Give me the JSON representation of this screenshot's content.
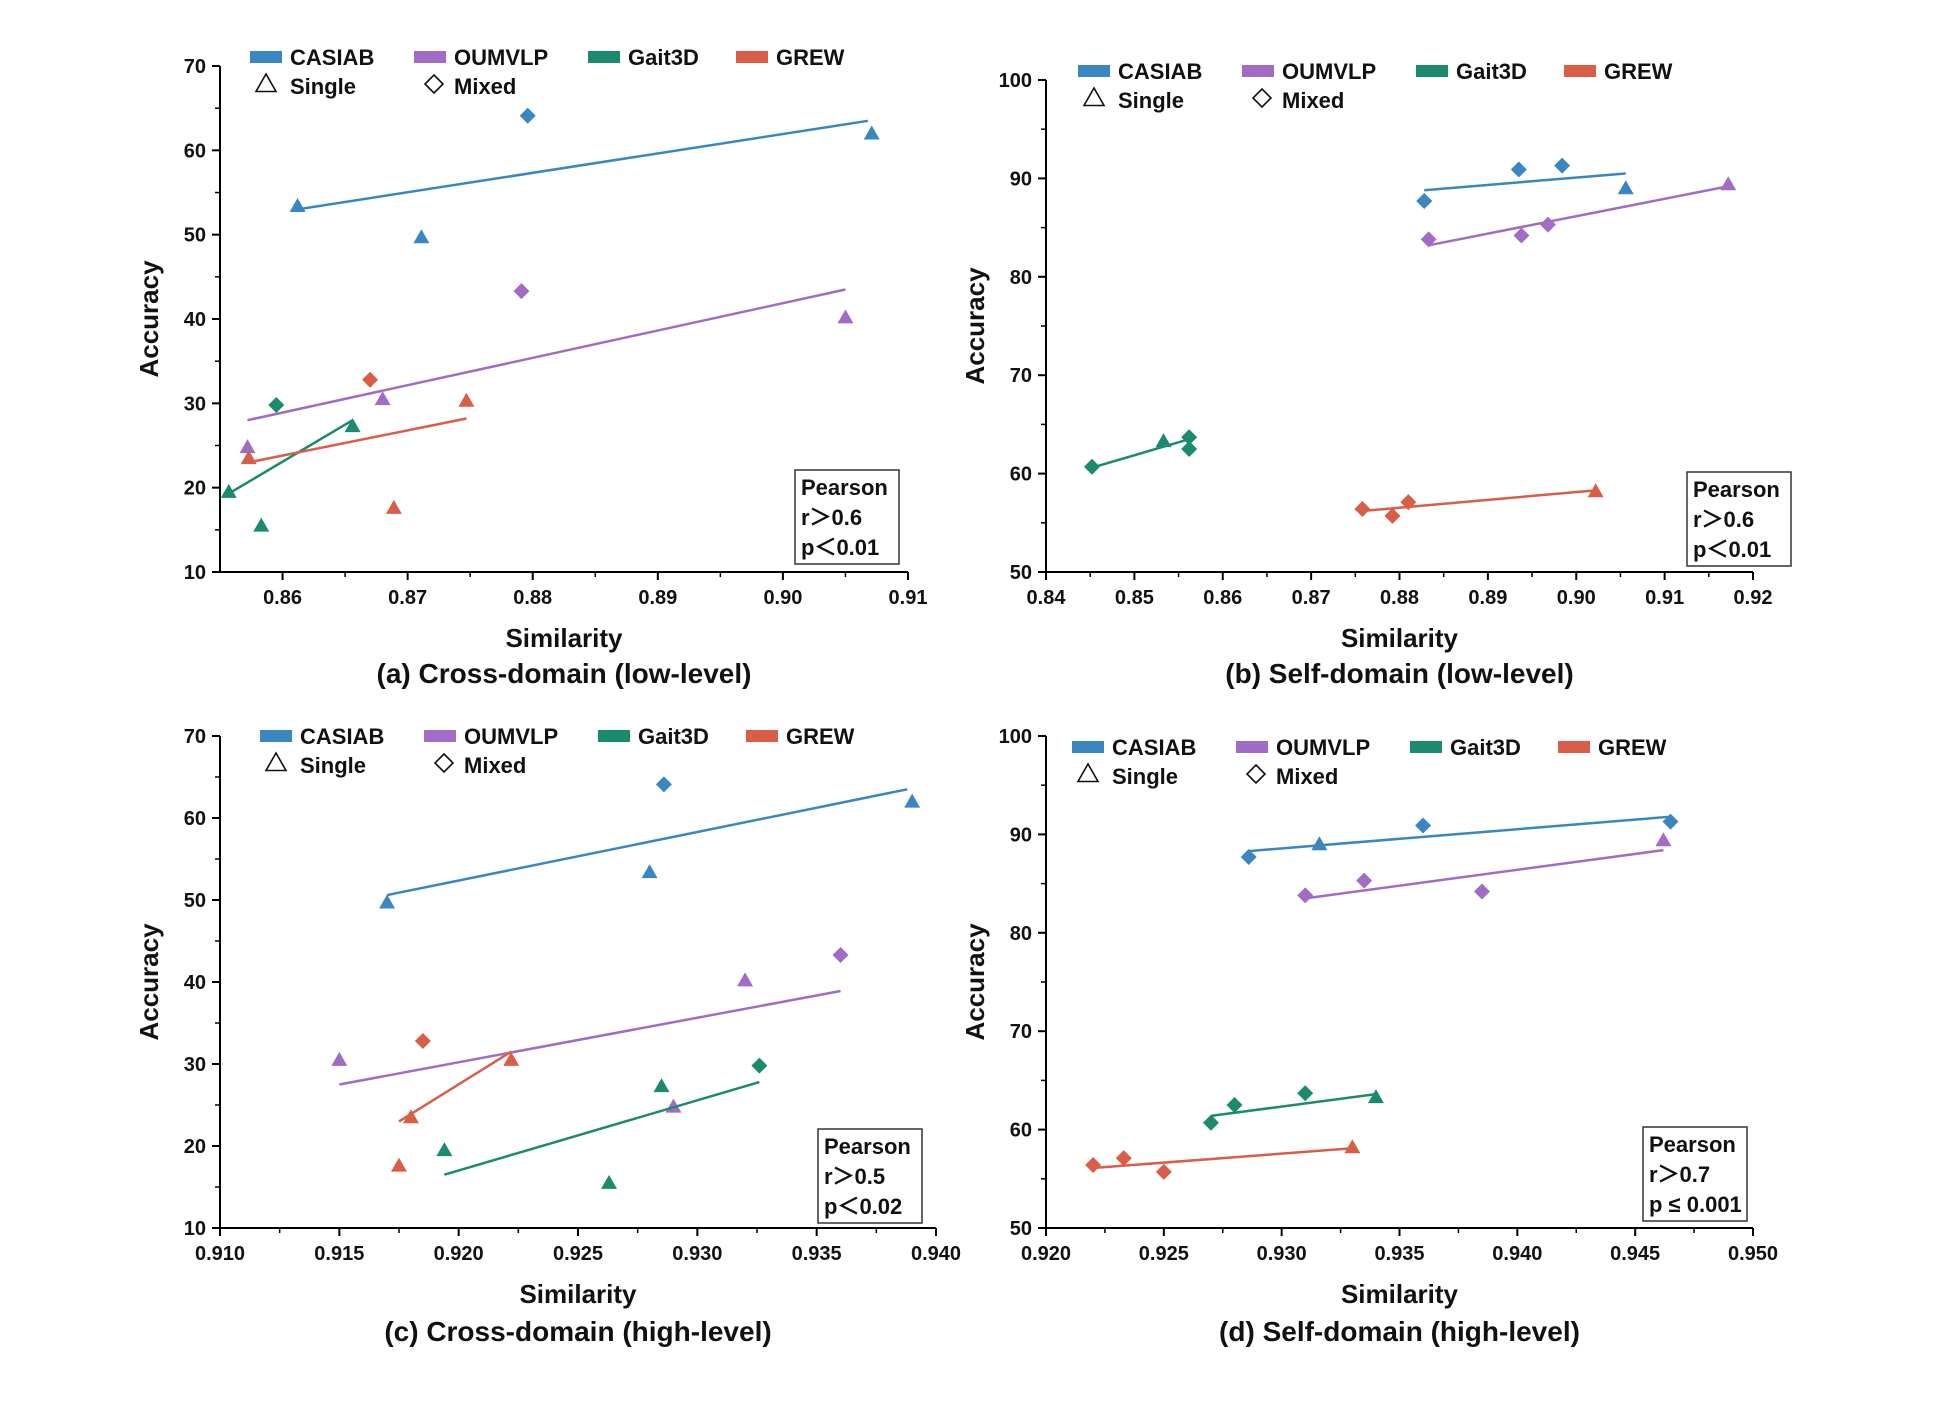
{
  "legend_labels": {
    "casiab": "CASIAB",
    "oumvlp": "OUMVLP",
    "gait3d": "Gait3D",
    "grew": "GREW",
    "single": "Single",
    "mixed": "Mixed"
  },
  "colors": {
    "casiab": "#3a86c0",
    "oumvlp": "#a06cc6",
    "gait3d": "#1b8a6e",
    "grew": "#d95d47"
  },
  "chart_data": [
    {
      "type": "scatter",
      "caption": "(a) Cross-domain (low-level)",
      "xlabel": "Similarity",
      "ylabel": "Accuracy",
      "xlim": [
        0.855,
        0.91
      ],
      "ylim": [
        10,
        70
      ],
      "xticks": [
        "0.86",
        "0.87",
        "0.88",
        "0.89",
        "0.90",
        "0.91"
      ],
      "xtick_values": [
        0.86,
        0.87,
        0.88,
        0.89,
        0.9,
        0.91
      ],
      "yticks": [
        "10",
        "20",
        "30",
        "40",
        "50",
        "60",
        "70"
      ],
      "ytick_values": [
        10,
        20,
        30,
        40,
        50,
        60,
        70
      ],
      "pearson": [
        "Pearson",
        "r＞0.6",
        "p＜0.01"
      ],
      "series": [
        {
          "name": "CASIAB",
          "points": [
            {
              "x": 0.8612,
              "y": 53.4,
              "marker": "single"
            },
            {
              "x": 0.8711,
              "y": 49.7,
              "marker": "single"
            },
            {
              "x": 0.8796,
              "y": 64.1,
              "marker": "mixed"
            },
            {
              "x": 0.9071,
              "y": 62.0,
              "marker": "single"
            }
          ],
          "fit": [
            [
              0.8612,
              53.0
            ],
            [
              0.9068,
              63.5
            ]
          ]
        },
        {
          "name": "OUMVLP",
          "points": [
            {
              "x": 0.8572,
              "y": 24.8,
              "marker": "single"
            },
            {
              "x": 0.868,
              "y": 30.5,
              "marker": "single"
            },
            {
              "x": 0.8791,
              "y": 43.3,
              "marker": "mixed"
            },
            {
              "x": 0.905,
              "y": 40.2,
              "marker": "single"
            }
          ],
          "fit": [
            [
              0.8572,
              28.0
            ],
            [
              0.905,
              43.5
            ]
          ]
        },
        {
          "name": "Gait3D",
          "points": [
            {
              "x": 0.8557,
              "y": 19.5,
              "marker": "single"
            },
            {
              "x": 0.8583,
              "y": 15.5,
              "marker": "single"
            },
            {
              "x": 0.8595,
              "y": 29.8,
              "marker": "mixed"
            },
            {
              "x": 0.8656,
              "y": 27.3,
              "marker": "single"
            }
          ],
          "fit": [
            [
              0.8557,
              19.3
            ],
            [
              0.8656,
              28.0
            ]
          ]
        },
        {
          "name": "GREW",
          "points": [
            {
              "x": 0.8573,
              "y": 23.5,
              "marker": "single"
            },
            {
              "x": 0.867,
              "y": 32.8,
              "marker": "mixed"
            },
            {
              "x": 0.8689,
              "y": 17.6,
              "marker": "single"
            },
            {
              "x": 0.8747,
              "y": 30.3,
              "marker": "single"
            }
          ],
          "fit": [
            [
              0.8573,
              23.0
            ],
            [
              0.8747,
              28.2
            ]
          ]
        }
      ]
    },
    {
      "type": "scatter",
      "caption": "(b) Self-domain (low-level)",
      "xlabel": "Similarity",
      "ylabel": "Accuracy",
      "xlim": [
        0.84,
        0.92
      ],
      "ylim": [
        50,
        100
      ],
      "xticks": [
        "0.84",
        "0.85",
        "0.86",
        "0.87",
        "0.88",
        "0.89",
        "0.90",
        "0.91",
        "0.92"
      ],
      "xtick_values": [
        0.84,
        0.85,
        0.86,
        0.87,
        0.88,
        0.89,
        0.9,
        0.91,
        0.92
      ],
      "yticks": [
        "50",
        "60",
        "70",
        "80",
        "90",
        "100"
      ],
      "ytick_values": [
        50,
        60,
        70,
        80,
        90,
        100
      ],
      "pearson": [
        "Pearson",
        "r＞0.6",
        "p＜0.01"
      ],
      "series": [
        {
          "name": "CASIAB",
          "points": [
            {
              "x": 0.8828,
              "y": 87.7,
              "marker": "mixed"
            },
            {
              "x": 0.8935,
              "y": 90.9,
              "marker": "mixed"
            },
            {
              "x": 0.8984,
              "y": 91.3,
              "marker": "mixed"
            },
            {
              "x": 0.9056,
              "y": 89.0,
              "marker": "single"
            }
          ],
          "fit": [
            [
              0.8828,
              88.8
            ],
            [
              0.9056,
              90.5
            ]
          ]
        },
        {
          "name": "OUMVLP",
          "points": [
            {
              "x": 0.8833,
              "y": 83.8,
              "marker": "mixed"
            },
            {
              "x": 0.8938,
              "y": 84.2,
              "marker": "mixed"
            },
            {
              "x": 0.8968,
              "y": 85.3,
              "marker": "mixed"
            },
            {
              "x": 0.9172,
              "y": 89.4,
              "marker": "single"
            }
          ],
          "fit": [
            [
              0.8833,
              83.2
            ],
            [
              0.9172,
              89.2
            ]
          ]
        },
        {
          "name": "Gait3D",
          "points": [
            {
              "x": 0.8452,
              "y": 60.7,
              "marker": "mixed"
            },
            {
              "x": 0.8533,
              "y": 63.3,
              "marker": "single"
            },
            {
              "x": 0.8562,
              "y": 63.7,
              "marker": "mixed"
            },
            {
              "x": 0.8562,
              "y": 62.5,
              "marker": "mixed"
            }
          ],
          "fit": [
            [
              0.8452,
              60.6
            ],
            [
              0.8562,
              63.5
            ]
          ]
        },
        {
          "name": "GREW",
          "points": [
            {
              "x": 0.8758,
              "y": 56.4,
              "marker": "mixed"
            },
            {
              "x": 0.8792,
              "y": 55.7,
              "marker": "mixed"
            },
            {
              "x": 0.881,
              "y": 57.1,
              "marker": "mixed"
            },
            {
              "x": 0.9022,
              "y": 58.2,
              "marker": "single"
            }
          ],
          "fit": [
            [
              0.8758,
              56.2
            ],
            [
              0.9022,
              58.3
            ]
          ]
        }
      ]
    },
    {
      "type": "scatter",
      "caption": "(c) Cross-domain (high-level)",
      "xlabel": "Similarity",
      "ylabel": "Accuracy",
      "xlim": [
        0.91,
        0.94
      ],
      "ylim": [
        10,
        70
      ],
      "xticks": [
        "0.910",
        "0.915",
        "0.920",
        "0.925",
        "0.930",
        "0.935",
        "0.940"
      ],
      "xtick_values": [
        0.91,
        0.915,
        0.92,
        0.925,
        0.93,
        0.935,
        0.94
      ],
      "yticks": [
        "10",
        "20",
        "30",
        "40",
        "50",
        "60",
        "70"
      ],
      "ytick_values": [
        10,
        20,
        30,
        40,
        50,
        60,
        70
      ],
      "pearson": [
        "Pearson",
        "r＞0.5",
        "p＜0.02"
      ],
      "series": [
        {
          "name": "CASIAB",
          "points": [
            {
              "x": 0.917,
              "y": 49.7,
              "marker": "single"
            },
            {
              "x": 0.928,
              "y": 53.4,
              "marker": "single"
            },
            {
              "x": 0.9286,
              "y": 64.1,
              "marker": "mixed"
            },
            {
              "x": 0.939,
              "y": 62.0,
              "marker": "single"
            }
          ],
          "fit": [
            [
              0.917,
              50.6
            ],
            [
              0.9388,
              63.5
            ]
          ]
        },
        {
          "name": "OUMVLP",
          "points": [
            {
              "x": 0.915,
              "y": 30.5,
              "marker": "single"
            },
            {
              "x": 0.929,
              "y": 24.8,
              "marker": "single"
            },
            {
              "x": 0.932,
              "y": 40.2,
              "marker": "single"
            },
            {
              "x": 0.936,
              "y": 43.3,
              "marker": "mixed"
            }
          ],
          "fit": [
            [
              0.915,
              27.5
            ],
            [
              0.936,
              38.9
            ]
          ]
        },
        {
          "name": "Gait3D",
          "points": [
            {
              "x": 0.9194,
              "y": 19.5,
              "marker": "single"
            },
            {
              "x": 0.9263,
              "y": 15.5,
              "marker": "single"
            },
            {
              "x": 0.9285,
              "y": 27.3,
              "marker": "single"
            },
            {
              "x": 0.9326,
              "y": 29.8,
              "marker": "mixed"
            }
          ],
          "fit": [
            [
              0.9194,
              16.5
            ],
            [
              0.9326,
              27.8
            ]
          ]
        },
        {
          "name": "GREW",
          "points": [
            {
              "x": 0.9175,
              "y": 17.6,
              "marker": "single"
            },
            {
              "x": 0.918,
              "y": 23.5,
              "marker": "single"
            },
            {
              "x": 0.9185,
              "y": 32.8,
              "marker": "mixed"
            },
            {
              "x": 0.9222,
              "y": 30.5,
              "marker": "single"
            }
          ],
          "fit": [
            [
              0.9175,
              23.0
            ],
            [
              0.9222,
              31.5
            ]
          ]
        }
      ]
    },
    {
      "type": "scatter",
      "caption": "(d) Self-domain (high-level)",
      "xlabel": "Similarity",
      "ylabel": "Accuracy",
      "xlim": [
        0.92,
        0.95
      ],
      "ylim": [
        50,
        100
      ],
      "xticks": [
        "0.920",
        "0.925",
        "0.930",
        "0.935",
        "0.940",
        "0.945",
        "0.950"
      ],
      "xtick_values": [
        0.92,
        0.925,
        0.93,
        0.935,
        0.94,
        0.945,
        0.95
      ],
      "yticks": [
        "50",
        "60",
        "70",
        "80",
        "90",
        "100"
      ],
      "ytick_values": [
        50,
        60,
        70,
        80,
        90,
        100
      ],
      "pearson": [
        "Pearson",
        "r＞0.7",
        "p ≤ 0.001"
      ],
      "series": [
        {
          "name": "CASIAB",
          "points": [
            {
              "x": 0.9286,
              "y": 87.7,
              "marker": "mixed"
            },
            {
              "x": 0.9316,
              "y": 89.0,
              "marker": "single"
            },
            {
              "x": 0.936,
              "y": 90.9,
              "marker": "mixed"
            },
            {
              "x": 0.9465,
              "y": 91.3,
              "marker": "mixed"
            }
          ],
          "fit": [
            [
              0.9286,
              88.3
            ],
            [
              0.9465,
              91.8
            ]
          ]
        },
        {
          "name": "OUMVLP",
          "points": [
            {
              "x": 0.931,
              "y": 83.8,
              "marker": "mixed"
            },
            {
              "x": 0.9335,
              "y": 85.3,
              "marker": "mixed"
            },
            {
              "x": 0.9385,
              "y": 84.2,
              "marker": "mixed"
            },
            {
              "x": 0.9462,
              "y": 89.4,
              "marker": "single"
            }
          ],
          "fit": [
            [
              0.931,
              83.5
            ],
            [
              0.9462,
              88.4
            ]
          ]
        },
        {
          "name": "Gait3D",
          "points": [
            {
              "x": 0.927,
              "y": 60.7,
              "marker": "mixed"
            },
            {
              "x": 0.928,
              "y": 62.5,
              "marker": "mixed"
            },
            {
              "x": 0.931,
              "y": 63.7,
              "marker": "mixed"
            },
            {
              "x": 0.934,
              "y": 63.3,
              "marker": "single"
            }
          ],
          "fit": [
            [
              0.927,
              61.4
            ],
            [
              0.934,
              63.6
            ]
          ]
        },
        {
          "name": "GREW",
          "points": [
            {
              "x": 0.922,
              "y": 56.4,
              "marker": "mixed"
            },
            {
              "x": 0.9233,
              "y": 57.1,
              "marker": "mixed"
            },
            {
              "x": 0.925,
              "y": 55.7,
              "marker": "mixed"
            },
            {
              "x": 0.933,
              "y": 58.2,
              "marker": "single"
            }
          ],
          "fit": [
            [
              0.922,
              56.1
            ],
            [
              0.933,
              58.1
            ]
          ]
        }
      ]
    }
  ]
}
